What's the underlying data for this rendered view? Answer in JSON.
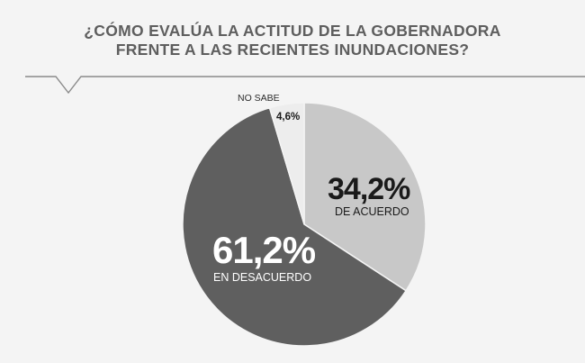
{
  "chart_data": {
    "type": "pie",
    "title": "¿CÓMO EVALÚA LA ACTITUD DE LA GOBERNADORA FRENTE A LAS RECIENTES INUNDACIONES?",
    "title_lines": [
      "¿CÓMO EVALÚA LA ACTITUD DE LA GOBERNADORA",
      "FRENTE A LAS RECIENTES INUNDACIONES?"
    ],
    "slices": [
      {
        "label": "DE ACUERDO",
        "value": 34.2,
        "display": "34,2%",
        "color": "#c8c8c8"
      },
      {
        "label": "EN DESACUERDO",
        "value": 61.2,
        "display": "61,2%",
        "color": "#5f5f5f"
      },
      {
        "label": "NO SABE",
        "value": 4.6,
        "display": "4,6%",
        "color": "#ededed"
      }
    ]
  },
  "colors": {
    "background": "#f4f4f4",
    "title": "#5e5e5e",
    "divider": "#8a8a8a",
    "slice_edge": "#f4f4f4",
    "label_dark": "#1a1a1a",
    "label_light": "#ffffff"
  }
}
